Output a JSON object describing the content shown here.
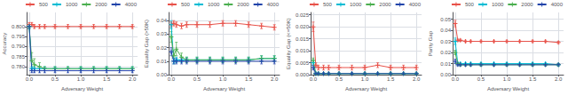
{
  "chart_data": [
    {
      "type": "line",
      "xlabel": "Adversary Weight",
      "ylabel": "Accuracy",
      "x": [
        0.0,
        0.05,
        0.1,
        0.2,
        0.3,
        0.5,
        0.75,
        1.0,
        1.25,
        1.5,
        1.75,
        2.0
      ],
      "xlim": [
        -0.05,
        2.1
      ],
      "xticks": [
        {
          "value": 0.0,
          "label": "0.0"
        },
        0.5,
        {
          "value": 1.0,
          "label": "1.0"
        },
        1.5,
        {
          "value": 2.0,
          "label": "2.0"
        }
      ],
      "ylim": [
        0.776,
        0.807
      ],
      "yticks": [
        {
          "value": 0.78,
          "label": "0.780"
        },
        0.785,
        {
          "value": 0.79,
          "label": "0.790"
        },
        0.795,
        {
          "value": 0.8,
          "label": "0.800"
        }
      ],
      "grid": true,
      "legend": "upper right",
      "series": [
        {
          "name": "500",
          "color": "#e8524a",
          "marker": "plus",
          "values": [
            0.801,
            0.801,
            0.8,
            0.8,
            0.8,
            0.8,
            0.8,
            0.8,
            0.8,
            0.8,
            0.8,
            0.8
          ],
          "errors": [
            0.001,
            0.001,
            0.001,
            0.001,
            0.001,
            0.001,
            0.001,
            0.001,
            0.001,
            0.001,
            0.001,
            0.001
          ]
        },
        {
          "name": "1000",
          "color": "#00bcd4",
          "marker": "plus",
          "values": [
            0.8,
            0.779,
            0.779,
            0.779,
            0.779,
            0.779,
            0.779,
            0.779,
            0.779,
            0.779,
            0.779,
            0.779
          ],
          "errors": [
            0.001,
            0.001,
            0.001,
            0.001,
            0.001,
            0.001,
            0.001,
            0.001,
            0.001,
            0.001,
            0.001,
            0.001
          ]
        },
        {
          "name": "2000",
          "color": "#4caf50",
          "marker": "plus",
          "values": [
            0.8,
            0.783,
            0.781,
            0.78,
            0.779,
            0.779,
            0.779,
            0.779,
            0.779,
            0.779,
            0.779,
            0.779
          ],
          "errors": [
            0.001,
            0.004,
            0.003,
            0.002,
            0.001,
            0.001,
            0.001,
            0.001,
            0.001,
            0.001,
            0.001,
            0.001
          ]
        },
        {
          "name": "4000",
          "color": "#2244aa",
          "marker": "plus",
          "values": [
            0.8,
            0.778,
            0.778,
            0.778,
            0.778,
            0.778,
            0.778,
            0.778,
            0.778,
            0.778,
            0.778,
            0.778
          ],
          "errors": [
            0.001,
            0.001,
            0.001,
            0.001,
            0.001,
            0.001,
            0.001,
            0.001,
            0.001,
            0.001,
            0.001,
            0.001
          ]
        }
      ]
    },
    {
      "type": "line",
      "xlabel": "Adversary Weight",
      "ylabel": "Equality Gap (>50K)",
      "x": [
        0.0,
        0.05,
        0.1,
        0.2,
        0.3,
        0.5,
        0.75,
        1.0,
        1.25,
        1.5,
        1.75,
        2.0
      ],
      "xlim": [
        -0.05,
        2.1
      ],
      "xticks": [
        {
          "value": 0.0,
          "label": "0.0"
        },
        0.5,
        {
          "value": 1.0,
          "label": "1.0"
        },
        1.5,
        {
          "value": 2.0,
          "label": "2.0"
        }
      ],
      "ylim": [
        0.0,
        0.046
      ],
      "yticks": [
        {
          "value": 0.0,
          "label": "0.00"
        },
        0.01,
        0.02,
        0.03,
        0.04
      ],
      "grid": true,
      "legend": "upper right",
      "series": [
        {
          "name": "500",
          "color": "#e8524a",
          "marker": "plus",
          "values": [
            0.037,
            0.038,
            0.037,
            0.036,
            0.037,
            0.037,
            0.037,
            0.038,
            0.038,
            0.037,
            0.036,
            0.035
          ],
          "errors": [
            0.002,
            0.002,
            0.002,
            0.002,
            0.002,
            0.002,
            0.002,
            0.002,
            0.002,
            0.002,
            0.002,
            0.002
          ]
        },
        {
          "name": "1000",
          "color": "#00bcd4",
          "marker": "plus",
          "values": [
            0.037,
            0.01,
            0.011,
            0.011,
            0.011,
            0.011,
            0.011,
            0.011,
            0.011,
            0.011,
            0.012,
            0.012
          ],
          "errors": [
            0.003,
            0.002,
            0.002,
            0.002,
            0.002,
            0.002,
            0.002,
            0.002,
            0.002,
            0.002,
            0.002,
            0.002
          ]
        },
        {
          "name": "2000",
          "color": "#4caf50",
          "marker": "plus",
          "values": [
            0.028,
            0.014,
            0.019,
            0.013,
            0.011,
            0.011,
            0.011,
            0.011,
            0.011,
            0.011,
            0.012,
            0.012
          ],
          "errors": [
            0.004,
            0.004,
            0.005,
            0.003,
            0.002,
            0.002,
            0.002,
            0.002,
            0.002,
            0.002,
            0.002,
            0.002
          ]
        },
        {
          "name": "4000",
          "color": "#2244aa",
          "marker": "plus",
          "values": [
            0.017,
            0.01,
            0.01,
            0.01,
            0.01,
            0.01,
            0.01,
            0.01,
            0.01,
            0.01,
            0.01,
            0.01
          ],
          "errors": [
            0.003,
            0.002,
            0.002,
            0.002,
            0.002,
            0.002,
            0.002,
            0.002,
            0.002,
            0.002,
            0.002,
            0.002
          ]
        }
      ]
    },
    {
      "type": "line",
      "xlabel": "Adversary Weight",
      "ylabel": "Equality Gap (<=50K)",
      "x": [
        0.0,
        0.05,
        0.1,
        0.2,
        0.3,
        0.5,
        0.75,
        1.0,
        1.25,
        1.5,
        1.75,
        2.0
      ],
      "xlim": [
        -0.05,
        2.1
      ],
      "xticks": [
        {
          "value": 0.0,
          "label": "0.0"
        },
        0.5,
        {
          "value": 1.0,
          "label": "1.0"
        },
        1.5,
        {
          "value": 2.0,
          "label": "2.0"
        }
      ],
      "ylim": [
        0.0,
        0.026
      ],
      "yticks": [
        {
          "value": 0.0,
          "label": "0.000"
        },
        0.005,
        {
          "value": 0.01,
          "label": "0.010"
        },
        0.015,
        {
          "value": 0.02,
          "label": "0.020"
        },
        0.025
      ],
      "grid": true,
      "legend": "upper right",
      "series": [
        {
          "name": "500",
          "color": "#e8524a",
          "marker": "plus",
          "values": [
            0.02,
            0.004,
            0.003,
            0.003,
            0.003,
            0.003,
            0.003,
            0.003,
            0.004,
            0.003,
            0.003,
            0.003
          ],
          "errors": [
            0.002,
            0.001,
            0.001,
            0.001,
            0.001,
            0.001,
            0.001,
            0.001,
            0.001,
            0.001,
            0.001,
            0.001
          ]
        },
        {
          "name": "1000",
          "color": "#00bcd4",
          "marker": "plus",
          "values": [
            0.005,
            0.0005,
            0.0005,
            0.0005,
            0.0005,
            0.0005,
            0.0005,
            0.0005,
            0.0005,
            0.0005,
            0.0005,
            0.0005
          ],
          "errors": [
            0.001,
            0.0003,
            0.0003,
            0.0003,
            0.0003,
            0.0003,
            0.0003,
            0.0003,
            0.0003,
            0.0003,
            0.0003,
            0.0003
          ]
        },
        {
          "name": "2000",
          "color": "#4caf50",
          "marker": "plus",
          "values": [
            0.006,
            0.0005,
            0.0005,
            0.0005,
            0.0005,
            0.0005,
            0.0005,
            0.0005,
            0.0005,
            0.0005,
            0.0005,
            0.0005
          ],
          "errors": [
            0.001,
            0.0003,
            0.0003,
            0.0003,
            0.0003,
            0.0003,
            0.0003,
            0.0003,
            0.0003,
            0.0003,
            0.0003,
            0.0003
          ]
        },
        {
          "name": "4000",
          "color": "#2244aa",
          "marker": "plus",
          "values": [
            0.003,
            0.0005,
            0.0005,
            0.0005,
            0.0005,
            0.0005,
            0.0005,
            0.0005,
            0.0005,
            0.0005,
            0.0005,
            0.0005
          ],
          "errors": [
            0.001,
            0.0003,
            0.0003,
            0.0003,
            0.0003,
            0.0003,
            0.0003,
            0.0003,
            0.0003,
            0.0003,
            0.0003,
            0.0003
          ]
        }
      ]
    },
    {
      "type": "line",
      "xlabel": "Adversary Weight",
      "ylabel": "Parity Gap",
      "x": [
        0.0,
        0.05,
        0.1,
        0.2,
        0.3,
        0.5,
        0.75,
        1.0,
        1.25,
        1.5,
        1.75,
        2.0
      ],
      "xlim": [
        -0.05,
        2.1
      ],
      "xticks": [
        {
          "value": 0.0,
          "label": "0.0"
        },
        0.5,
        {
          "value": 1.0,
          "label": "1.0"
        },
        1.5,
        {
          "value": 2.0,
          "label": "2.0"
        }
      ],
      "ylim": [
        0.0,
        0.056
      ],
      "yticks": [
        {
          "value": 0.0,
          "label": "0.00"
        },
        0.01,
        0.02,
        0.03,
        0.04,
        0.05
      ],
      "grid": true,
      "legend": "upper right",
      "series": [
        {
          "name": "500",
          "color": "#e8524a",
          "marker": "plus",
          "values": [
            0.046,
            0.031,
            0.031,
            0.03,
            0.03,
            0.03,
            0.03,
            0.03,
            0.03,
            0.03,
            0.03,
            0.029
          ],
          "errors": [
            0.003,
            0.001,
            0.001,
            0.001,
            0.001,
            0.001,
            0.001,
            0.001,
            0.001,
            0.001,
            0.001,
            0.001
          ]
        },
        {
          "name": "1000",
          "color": "#00bcd4",
          "marker": "plus",
          "values": [
            0.03,
            0.01,
            0.01,
            0.01,
            0.01,
            0.01,
            0.01,
            0.01,
            0.01,
            0.01,
            0.01,
            0.009
          ],
          "errors": [
            0.003,
            0.001,
            0.001,
            0.001,
            0.001,
            0.001,
            0.001,
            0.001,
            0.001,
            0.001,
            0.001,
            0.001
          ]
        },
        {
          "name": "2000",
          "color": "#4caf50",
          "marker": "plus",
          "values": [
            0.02,
            0.01,
            0.009,
            0.009,
            0.009,
            0.009,
            0.009,
            0.009,
            0.009,
            0.009,
            0.009,
            0.009
          ],
          "errors": [
            0.002,
            0.001,
            0.001,
            0.001,
            0.001,
            0.001,
            0.001,
            0.001,
            0.001,
            0.001,
            0.001,
            0.001
          ]
        },
        {
          "name": "4000",
          "color": "#2244aa",
          "marker": "plus",
          "values": [
            0.012,
            0.009,
            0.009,
            0.009,
            0.009,
            0.009,
            0.009,
            0.009,
            0.009,
            0.009,
            0.009,
            0.009
          ],
          "errors": [
            0.002,
            0.001,
            0.001,
            0.001,
            0.001,
            0.001,
            0.001,
            0.001,
            0.001,
            0.001,
            0.001,
            0.001
          ]
        }
      ]
    }
  ]
}
